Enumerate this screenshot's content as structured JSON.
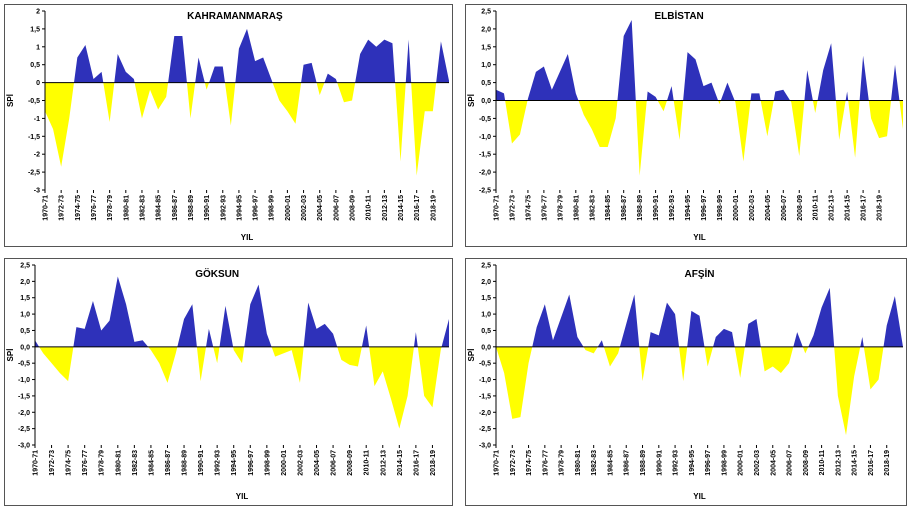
{
  "colors": {
    "positive": "#2e31ba",
    "negative": "#ffff00",
    "axis": "#000000"
  },
  "chart_data": [
    {
      "type": "area",
      "title": "KAHRAMANMARAŞ",
      "xlabel": "YIL",
      "ylabel": "SPİ",
      "ylim": [
        -3,
        2
      ],
      "yticks": [
        "2",
        "1,5",
        "1",
        "0,5",
        "0",
        "-0,5",
        "-1",
        "-1,5",
        "-2",
        "-2,5",
        "-3"
      ],
      "xticks": [
        "1970-71",
        "1972-73",
        "1974-75",
        "1976-77",
        "1978-79",
        "1980-81",
        "1982-83",
        "1984-85",
        "1986-87",
        "1988-89",
        "1990-91",
        "1992-93",
        "1994-95",
        "1996-97",
        "1998-99",
        "2000-01",
        "2002-03",
        "2004-05",
        "2006-07",
        "2008-09",
        "2010-11",
        "2012-13",
        "2014-15",
        "2016-17",
        "2018-19"
      ],
      "values": [
        -0.8,
        -1.3,
        -2.35,
        -1.0,
        0.7,
        1.05,
        0.1,
        0.3,
        -1.1,
        0.8,
        0.3,
        0.1,
        -1.0,
        -0.2,
        -0.75,
        -0.4,
        1.3,
        1.3,
        -1.0,
        0.7,
        -0.2,
        0.45,
        0.45,
        -1.2,
        0.95,
        1.5,
        0.6,
        0.7,
        0.1,
        -0.5,
        -0.8,
        -1.15,
        0.5,
        0.55,
        -0.35,
        0.25,
        0.1,
        -0.55,
        -0.5,
        0.8,
        1.2,
        1.0,
        1.2,
        1.1,
        -2.2,
        1.2,
        -2.6,
        -0.8,
        -0.8,
        1.15,
        0.05
      ]
    },
    {
      "type": "area",
      "title": "ELBİSTAN",
      "xlabel": "YIL",
      "ylabel": "SPİ",
      "ylim": [
        -2.5,
        2.5
      ],
      "yticks": [
        "2,5",
        "2,0",
        "1,5",
        "1,0",
        "0,5",
        "0,0",
        "-0,5",
        "-1,0",
        "-1,5",
        "-2,0",
        "-2,5"
      ],
      "xticks": [
        "1970-71",
        "1972-73",
        "1974-75",
        "1976-77",
        "1978-79",
        "1980-81",
        "1982-83",
        "1984-85",
        "1986-87",
        "1988-89",
        "1990-91",
        "1992-93",
        "1994-95",
        "1996-97",
        "1998-99",
        "2000-01",
        "2002-03",
        "2004-05",
        "2006-07",
        "2008-09",
        "2010-11",
        "2012-13",
        "2014-15",
        "2016-17",
        "2018-19"
      ],
      "values": [
        0.3,
        0.2,
        -1.2,
        -0.95,
        0.05,
        0.8,
        0.95,
        0.3,
        0.8,
        1.3,
        0.2,
        -0.4,
        -0.8,
        -1.3,
        -1.3,
        -0.5,
        1.8,
        2.25,
        -2.1,
        0.25,
        0.1,
        -0.3,
        0.4,
        -1.1,
        1.35,
        1.15,
        0.4,
        0.5,
        -0.1,
        0.5,
        -0.05,
        -1.7,
        0.2,
        0.2,
        -1.0,
        0.25,
        0.3,
        -0.05,
        -1.55,
        0.85,
        -0.35,
        0.85,
        1.6,
        -1.1,
        0.25,
        -1.6,
        1.25,
        -0.5,
        -1.05,
        -1.0,
        1.0,
        -0.8
      ]
    },
    {
      "type": "area",
      "title": "GÖKSUN",
      "xlabel": "YIL",
      "ylabel": "SPİ",
      "ylim": [
        -3,
        2.5
      ],
      "yticks": [
        "2,5",
        "2,0",
        "1,5",
        "1,0",
        "0,5",
        "0,0",
        "-0,5",
        "-1,0",
        "-1,5",
        "-2,0",
        "-2,5",
        "-3,0"
      ],
      "xticks": [
        "1970-71",
        "1972-73",
        "1974-75",
        "1976-77",
        "1978-79",
        "1980-81",
        "1982-83",
        "1984-85",
        "1986-87",
        "1988-89",
        "1990-91",
        "1992-93",
        "1994-95",
        "1996-97",
        "1998-99",
        "2000-01",
        "2002-03",
        "2004-05",
        "2006-07",
        "2008-09",
        "2010-11",
        "2012-13",
        "2014-15",
        "2016-17",
        "2018-19"
      ],
      "values": [
        0.2,
        -0.2,
        -0.5,
        -0.8,
        -1.05,
        0.6,
        0.55,
        1.4,
        0.5,
        0.8,
        2.15,
        1.3,
        0.15,
        0.2,
        -0.1,
        -0.5,
        -1.1,
        -0.2,
        0.85,
        1.3,
        -1.05,
        0.55,
        -0.5,
        1.25,
        -0.1,
        -0.5,
        1.3,
        1.9,
        0.4,
        -0.3,
        -0.2,
        -0.1,
        -1.1,
        1.35,
        0.55,
        0.7,
        0.4,
        -0.4,
        -0.55,
        -0.6,
        0.65,
        -1.2,
        -0.75,
        -1.6,
        -2.5,
        -1.5,
        0.45,
        -1.5,
        -1.85,
        -0.1,
        0.85
      ]
    },
    {
      "type": "area",
      "title": "AFŞİN",
      "xlabel": "YIL",
      "ylabel": "SPİ",
      "ylim": [
        -3,
        2.5
      ],
      "yticks": [
        "2,5",
        "2,0",
        "1,5",
        "1,0",
        "0,5",
        "0,0",
        "-0,5",
        "-1,0",
        "-1,5",
        "-2,0",
        "-2,5",
        "-3,0"
      ],
      "xticks": [
        "1970-71",
        "1972-73",
        "1974-75",
        "1976-77",
        "1978-79",
        "1980-81",
        "1982-83",
        "1984-85",
        "1986-87",
        "1988-89",
        "1990-91",
        "1992-93",
        "1994-95",
        "1996-97",
        "1998-99",
        "2000-01",
        "2002-03",
        "2004-05",
        "2006-07",
        "2008-09",
        "2010-11",
        "2012-13",
        "2014-15",
        "2016-17",
        "2018-19"
      ],
      "values": [
        0.0,
        -0.8,
        -2.2,
        -2.15,
        -0.5,
        0.6,
        1.3,
        0.2,
        0.9,
        1.6,
        0.3,
        -0.1,
        -0.2,
        0.2,
        -0.6,
        -0.2,
        0.7,
        1.6,
        -1.05,
        0.45,
        0.35,
        1.35,
        1.0,
        -1.05,
        1.1,
        0.95,
        -0.6,
        0.3,
        0.55,
        0.45,
        -0.95,
        0.7,
        0.85,
        -0.75,
        -0.6,
        -0.8,
        -0.5,
        0.45,
        -0.2,
        0.35,
        1.2,
        1.8,
        -1.5,
        -2.7,
        -0.9,
        0.3,
        -1.3,
        -1.0,
        0.65,
        1.55,
        0.0
      ]
    }
  ]
}
